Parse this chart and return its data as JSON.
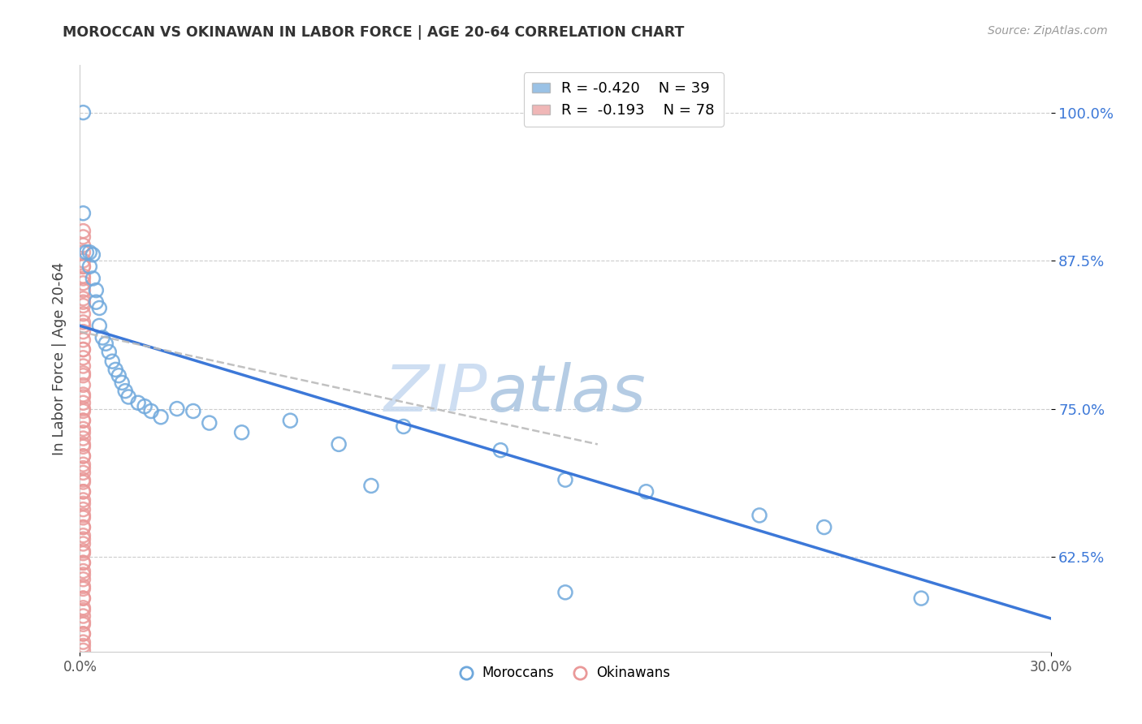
{
  "title": "MOROCCAN VS OKINAWAN IN LABOR FORCE | AGE 20-64 CORRELATION CHART",
  "source": "Source: ZipAtlas.com",
  "ylabel": "In Labor Force | Age 20-64",
  "xmin": 0.0,
  "xmax": 0.3,
  "ymin": 0.545,
  "ymax": 1.04,
  "watermark_zip": "ZIP",
  "watermark_atlas": "atlas",
  "legend_blue_r": "-0.420",
  "legend_blue_n": "39",
  "legend_pink_r": "-0.193",
  "legend_pink_n": "78",
  "moroccan_color": "#6fa8dc",
  "moroccan_edge": "#6fa8dc",
  "okinawan_color": "#ea9999",
  "okinawan_edge": "#ea9999",
  "regression_blue_color": "#3c78d8",
  "regression_pink_color": "#cccccc",
  "ytick_positions": [
    0.625,
    0.75,
    0.875,
    1.0
  ],
  "ytick_labels": [
    "62.5%",
    "75.0%",
    "87.5%",
    "100.0%"
  ],
  "moroccan_x": [
    0.001,
    0.001,
    0.002,
    0.003,
    0.003,
    0.004,
    0.004,
    0.005,
    0.005,
    0.006,
    0.006,
    0.007,
    0.008,
    0.009,
    0.01,
    0.011,
    0.012,
    0.013,
    0.014,
    0.015,
    0.018,
    0.02,
    0.022,
    0.025,
    0.03,
    0.035,
    0.04,
    0.05,
    0.065,
    0.08,
    0.1,
    0.13,
    0.15,
    0.175,
    0.21,
    0.23,
    0.26,
    0.15,
    0.09
  ],
  "moroccan_y": [
    1.0,
    0.915,
    0.882,
    0.882,
    0.87,
    0.88,
    0.86,
    0.85,
    0.84,
    0.835,
    0.82,
    0.81,
    0.805,
    0.798,
    0.79,
    0.783,
    0.778,
    0.772,
    0.765,
    0.76,
    0.755,
    0.752,
    0.748,
    0.743,
    0.75,
    0.748,
    0.738,
    0.73,
    0.74,
    0.72,
    0.735,
    0.715,
    0.69,
    0.68,
    0.66,
    0.65,
    0.59,
    0.595,
    0.685
  ],
  "okinawan_x": [
    0.001,
    0.001,
    0.001,
    0.001,
    0.001,
    0.001,
    0.001,
    0.001,
    0.001,
    0.001,
    0.001,
    0.001,
    0.001,
    0.001,
    0.001,
    0.001,
    0.001,
    0.001,
    0.001,
    0.001,
    0.001,
    0.001,
    0.001,
    0.001,
    0.001,
    0.001,
    0.001,
    0.001,
    0.001,
    0.001,
    0.001,
    0.001,
    0.001,
    0.001,
    0.001,
    0.001,
    0.001,
    0.001,
    0.001,
    0.001,
    0.001,
    0.001,
    0.001,
    0.001,
    0.001,
    0.001,
    0.001,
    0.001,
    0.001,
    0.001,
    0.001,
    0.001,
    0.001,
    0.001,
    0.001,
    0.001,
    0.001,
    0.001,
    0.001,
    0.001,
    0.001,
    0.001,
    0.001,
    0.001,
    0.001,
    0.001,
    0.001,
    0.001,
    0.001,
    0.001,
    0.001,
    0.001,
    0.001,
    0.001,
    0.001,
    0.001,
    0.001,
    0.001
  ],
  "okinawan_y": [
    0.9,
    0.895,
    0.888,
    0.882,
    0.875,
    0.87,
    0.862,
    0.856,
    0.85,
    0.843,
    0.837,
    0.83,
    0.823,
    0.815,
    0.808,
    0.8,
    0.793,
    0.786,
    0.778,
    0.77,
    0.762,
    0.755,
    0.748,
    0.74,
    0.733,
    0.725,
    0.718,
    0.71,
    0.703,
    0.696,
    0.688,
    0.68,
    0.673,
    0.665,
    0.658,
    0.65,
    0.643,
    0.636,
    0.628,
    0.62,
    0.613,
    0.606,
    0.598,
    0.59,
    0.582,
    0.575,
    0.568,
    0.56,
    0.553,
    0.546,
    0.87,
    0.86,
    0.84,
    0.82,
    0.8,
    0.78,
    0.76,
    0.75,
    0.74,
    0.73,
    0.72,
    0.71,
    0.7,
    0.69,
    0.68,
    0.67,
    0.66,
    0.65,
    0.64,
    0.63,
    0.62,
    0.61,
    0.6,
    0.59,
    0.58,
    0.57,
    0.56,
    0.55
  ]
}
